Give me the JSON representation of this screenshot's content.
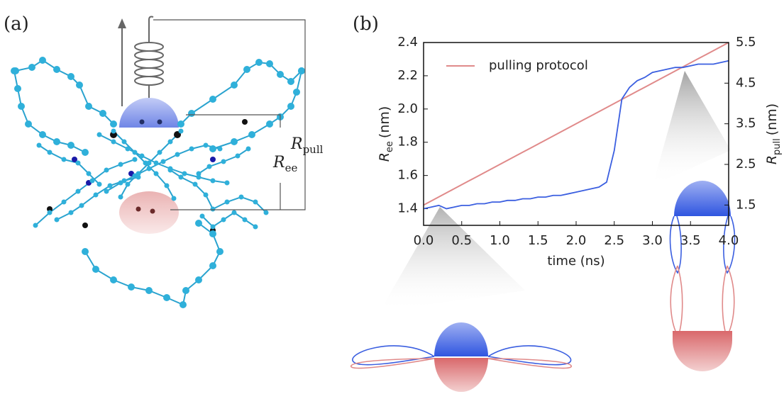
{
  "annotations": {
    "panel_a": "(a)",
    "panel_b": "(b)",
    "r_pull": {
      "symbol": "R",
      "subscript": "pull"
    },
    "r_ee": {
      "symbol": "R",
      "subscript": "ee"
    }
  },
  "chart_data": {
    "type": "line",
    "xlabel": "time (ns)",
    "ylabel": {
      "symbol": "R",
      "subscript": "ee",
      "unit": "(nm)"
    },
    "y2label": {
      "symbol": "R",
      "subscript": "pull",
      "unit": "(nm)"
    },
    "x": [
      0,
      0.1,
      0.2,
      0.3,
      0.4,
      0.5,
      0.6,
      0.7,
      0.8,
      0.9,
      1.0,
      1.1,
      1.2,
      1.3,
      1.4,
      1.5,
      1.6,
      1.7,
      1.8,
      1.9,
      2.0,
      2.1,
      2.2,
      2.3,
      2.4,
      2.5,
      2.6,
      2.7,
      2.8,
      2.9,
      3.0,
      3.1,
      3.2,
      3.3,
      3.4,
      3.5,
      3.6,
      3.7,
      3.8,
      3.9,
      4.0
    ],
    "series": [
      {
        "color": "#3b5fe0",
        "axis": "y",
        "values": [
          1.4,
          1.41,
          1.42,
          1.4,
          1.41,
          1.42,
          1.42,
          1.43,
          1.43,
          1.44,
          1.44,
          1.45,
          1.45,
          1.46,
          1.46,
          1.47,
          1.47,
          1.48,
          1.48,
          1.49,
          1.5,
          1.51,
          1.52,
          1.53,
          1.56,
          1.75,
          2.06,
          2.13,
          2.17,
          2.19,
          2.22,
          2.23,
          2.24,
          2.25,
          2.25,
          2.26,
          2.27,
          2.27,
          2.27,
          2.28,
          2.29
        ]
      },
      {
        "name": "pulling protocol",
        "color": "#e08a8a",
        "axis": "y2",
        "values": [
          1.5,
          1.6,
          1.7,
          1.8,
          1.9,
          2.0,
          2.1,
          2.2,
          2.3,
          2.4,
          2.5,
          2.6,
          2.7,
          2.8,
          2.9,
          3.0,
          3.1,
          3.2,
          3.3,
          3.4,
          3.5,
          3.6,
          3.7,
          3.8,
          3.9,
          4.0,
          4.1,
          4.2,
          4.3,
          4.4,
          4.5,
          4.6,
          4.7,
          4.8,
          4.9,
          5.0,
          5.1,
          5.2,
          5.3,
          5.4,
          5.5
        ]
      }
    ],
    "xlim": [
      0,
      4
    ],
    "xticks": [
      {
        "value": 0,
        "label": "0.0"
      },
      0.5,
      {
        "value": 1,
        "label": "1.0"
      },
      1.5,
      {
        "value": 2,
        "label": "2.0"
      },
      2.5,
      {
        "value": 3,
        "label": "3.0"
      },
      3.5,
      {
        "value": 4,
        "label": "4.0"
      }
    ],
    "ylim": [
      1.3,
      2.4
    ],
    "yticks": [
      1.4,
      1.6,
      1.8,
      {
        "value": 2,
        "label": "2.0"
      },
      2.2,
      2.4
    ],
    "y2lim": [
      1.0,
      5.5
    ],
    "y2ticks": [
      1.5,
      2.5,
      3.5,
      4.5,
      5.5
    ],
    "grid": false,
    "legend": "upper left"
  }
}
